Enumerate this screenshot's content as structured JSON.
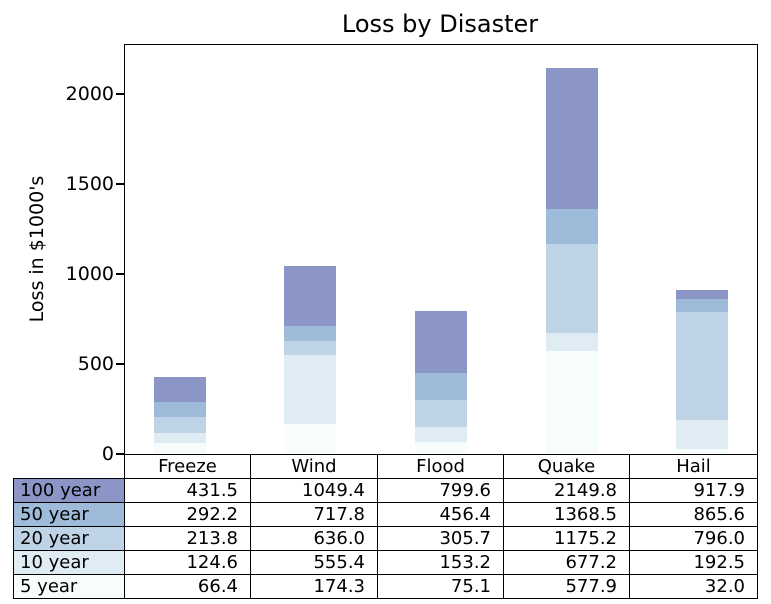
{
  "chart_data": {
    "type": "bar",
    "stacked": true,
    "title": "Loss by Disaster",
    "xlabel": "",
    "ylabel": "Loss in $1000's",
    "categories": [
      "Freeze",
      "Wind",
      "Flood",
      "Quake",
      "Hail"
    ],
    "yticks": [
      "0",
      "500",
      "1000",
      "1500",
      "2000"
    ],
    "ylim": [
      0,
      2278
    ],
    "grid": false,
    "legend_position": "table-row-labels",
    "series": [
      {
        "name": "100 year",
        "color": "#8c96c6",
        "values": [
          "431.5",
          "1049.4",
          "799.6",
          "2149.8",
          "917.9"
        ]
      },
      {
        "name": "50 year",
        "color": "#9ebcda",
        "values": [
          "292.2",
          "717.8",
          "456.4",
          "1368.5",
          "865.6"
        ]
      },
      {
        "name": "20 year",
        "color": "#bfd3e6",
        "values": [
          "213.8",
          "636.0",
          "305.7",
          "1175.2",
          "796.0"
        ]
      },
      {
        "name": "10 year",
        "color": "#e0ecf4",
        "values": [
          "124.6",
          "555.4",
          "153.2",
          "677.2",
          "192.5"
        ]
      },
      {
        "name": "5 year",
        "color": "#f7fcfd",
        "values": [
          "66.4",
          "174.3",
          "75.1",
          "577.9",
          "32.0"
        ]
      }
    ],
    "axis_color": "#000000",
    "text_color": "#000000"
  }
}
